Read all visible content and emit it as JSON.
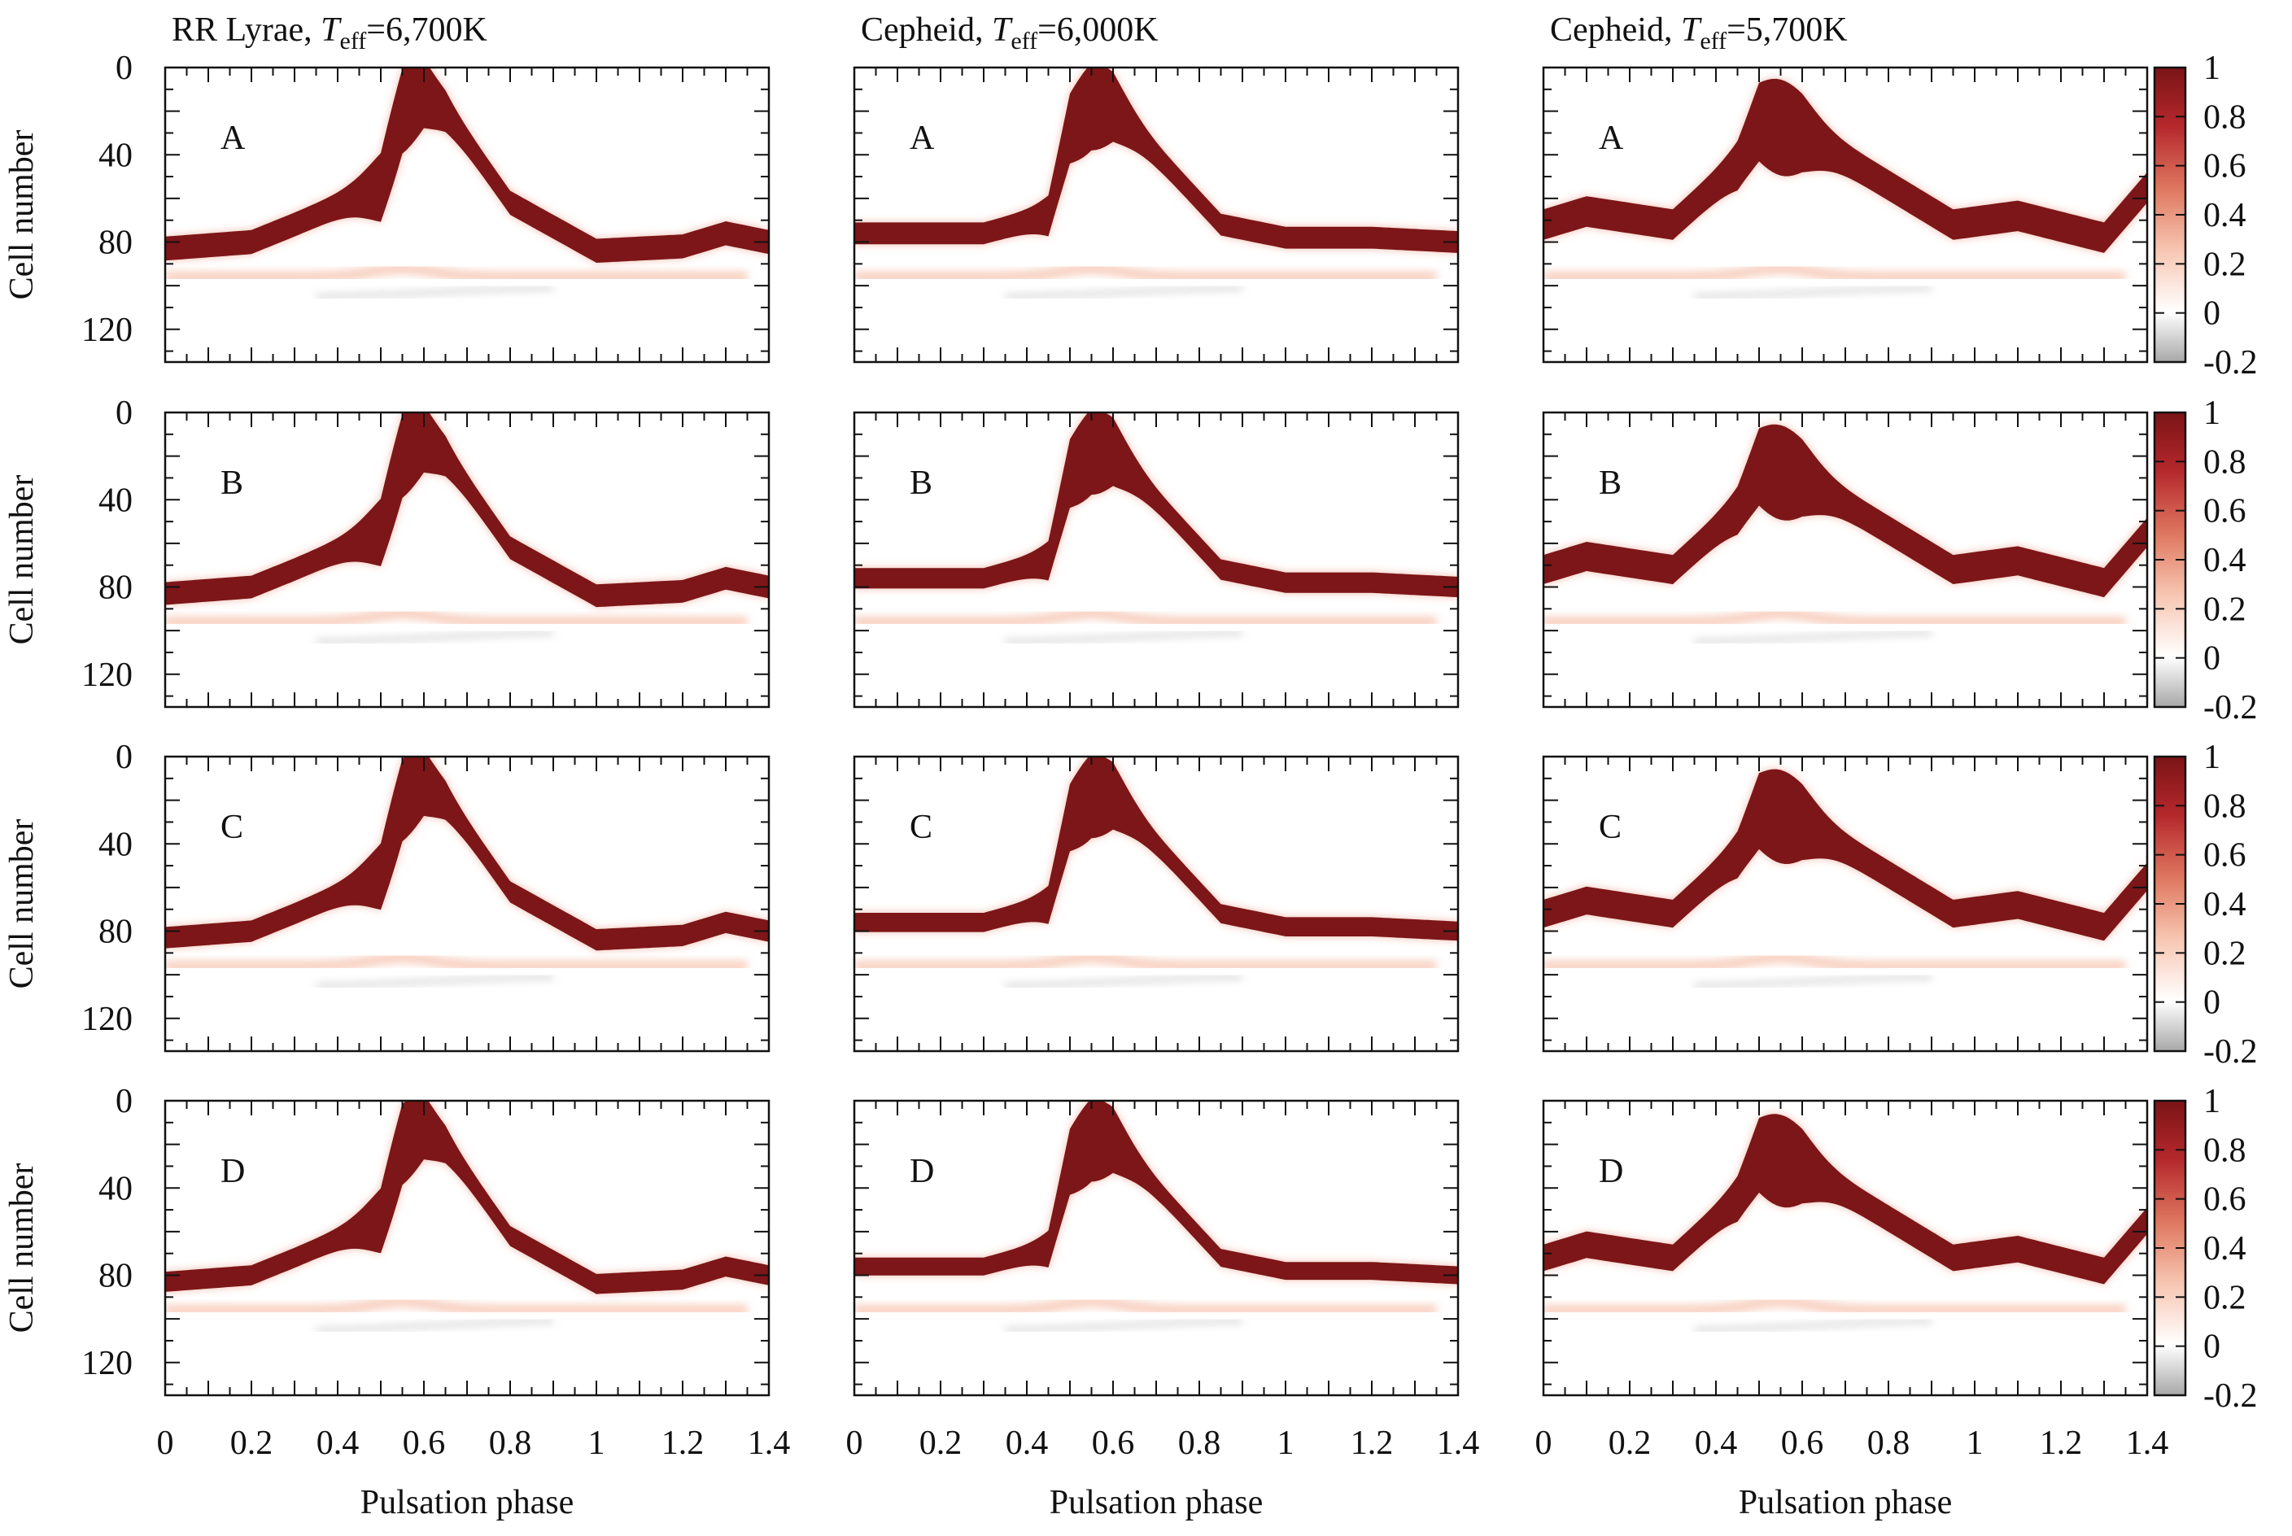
{
  "chart_data": {
    "type": "heatmap",
    "columns": [
      {
        "title_prefix": "RR Lyrae, ",
        "title_symbol": "T",
        "title_subscript": "eff",
        "title_suffix": "=6,700K"
      },
      {
        "title_prefix": "Cepheid, ",
        "title_symbol": "T",
        "title_subscript": "eff",
        "title_suffix": "=6,000K"
      },
      {
        "title_prefix": "Cepheid, ",
        "title_symbol": "T",
        "title_subscript": "eff",
        "title_suffix": "=5,700K"
      }
    ],
    "row_labels": [
      "A",
      "B",
      "C",
      "D"
    ],
    "xlabel": "Pulsation phase",
    "ylabel": "Cell number",
    "xlim": [
      0,
      1.4
    ],
    "ylim": [
      0,
      135
    ],
    "y_inverted": true,
    "x_ticks": [
      "0",
      "0.2",
      "0.4",
      "0.6",
      "0.8",
      "1",
      "1.2",
      "1.4"
    ],
    "y_ticks": [
      "0",
      "40",
      "80",
      "120"
    ],
    "colorbar": {
      "range": [
        -0.2,
        1
      ],
      "ticks": [
        "1",
        "0.8",
        "0.6",
        "0.4",
        "0.2",
        "0",
        "-0.2"
      ],
      "colors": [
        "#7a1416",
        "#b5282c",
        "#e07a62",
        "#f7c6b2",
        "#ffffff",
        "#a8a8a8"
      ]
    },
    "ridge_cell_by_column": [
      {
        "x": [
          0,
          0.2,
          0.3,
          0.5,
          0.55,
          0.6,
          0.65,
          0.8,
          1.0,
          1.2,
          1.3,
          1.4
        ],
        "center": [
          83,
          80,
          72,
          55,
          20,
          12,
          20,
          62,
          84,
          82,
          76,
          80
        ]
      },
      {
        "x": [
          0,
          0.3,
          0.45,
          0.5,
          0.55,
          0.6,
          0.7,
          0.85,
          1.0,
          1.2,
          1.4
        ],
        "center": [
          76,
          76,
          68,
          28,
          18,
          18,
          40,
          72,
          78,
          78,
          80
        ]
      },
      {
        "x": [
          0,
          0.1,
          0.3,
          0.45,
          0.5,
          0.6,
          0.75,
          0.95,
          1.1,
          1.3,
          1.4
        ],
        "center": [
          72,
          66,
          72,
          45,
          25,
          30,
          48,
          72,
          68,
          78,
          55
        ]
      }
    ]
  }
}
